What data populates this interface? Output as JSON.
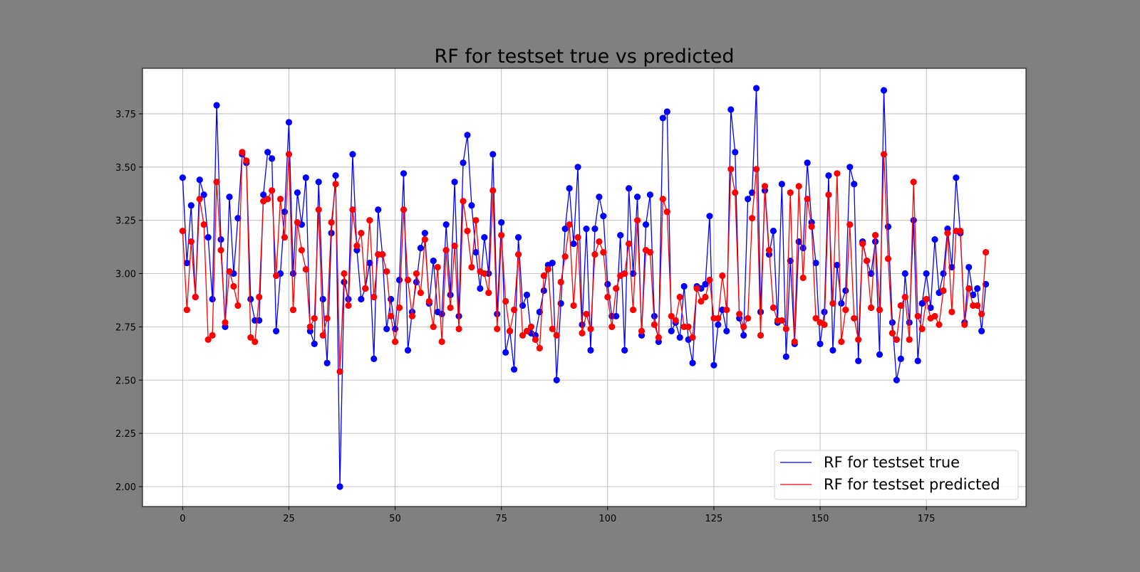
{
  "chart_data": {
    "type": "line",
    "title": "RF for testset true vs predicted",
    "xlabel": "",
    "ylabel": "",
    "xlim": [
      -9.45,
      198.45
    ],
    "ylim": [
      1.9065,
      3.9635
    ],
    "x_ticks": [
      0,
      25,
      50,
      75,
      100,
      125,
      150,
      175
    ],
    "y_ticks": [
      2.0,
      2.25,
      2.5,
      2.75,
      3.0,
      3.25,
      3.5,
      3.75
    ],
    "grid": true,
    "legend": "lower right",
    "series": [
      {
        "name": "RF for testset true",
        "color": "#0000ff",
        "marker": "circle",
        "values": [
          3.45,
          3.05,
          3.32,
          2.89,
          3.44,
          3.37,
          3.17,
          2.88,
          3.79,
          3.16,
          2.75,
          3.36,
          3.0,
          3.26,
          3.56,
          3.52,
          2.88,
          2.78,
          2.78,
          3.37,
          3.57,
          3.54,
          2.73,
          3.0,
          3.29,
          3.71,
          3.0,
          3.38,
          3.23,
          3.45,
          2.73,
          2.67,
          3.43,
          2.88,
          2.58,
          3.19,
          3.46,
          2.0,
          2.96,
          2.88,
          3.56,
          3.11,
          2.88,
          2.93,
          3.05,
          2.6,
          3.3,
          3.09,
          2.74,
          2.88,
          2.74,
          2.97,
          3.47,
          2.64,
          2.82,
          2.96,
          3.12,
          3.19,
          2.86,
          3.06,
          2.82,
          2.81,
          3.23,
          2.9,
          3.43,
          2.8,
          3.52,
          3.65,
          3.32,
          3.1,
          2.93,
          3.17,
          3.0,
          3.56,
          2.81,
          3.24,
          2.63,
          2.73,
          2.55,
          3.17,
          2.85,
          2.9,
          2.72,
          2.71,
          2.82,
          2.92,
          3.04,
          3.05,
          2.5,
          2.86,
          3.21,
          3.4,
          3.14,
          3.5,
          2.76,
          3.21,
          2.64,
          3.21,
          3.36,
          3.27,
          2.95,
          2.8,
          2.8,
          3.18,
          2.64,
          3.4,
          3.0,
          3.36,
          2.71,
          3.23,
          3.37,
          2.8,
          2.68,
          3.73,
          3.76,
          2.73,
          2.77,
          2.7,
          2.94,
          2.69,
          2.58,
          2.94,
          2.93,
          2.95,
          3.27,
          2.57,
          2.76,
          2.83,
          2.73,
          3.77,
          3.57,
          2.79,
          2.71,
          3.35,
          3.38,
          3.87,
          2.82,
          3.39,
          3.09,
          3.2,
          2.77,
          3.42,
          2.61,
          3.06,
          2.67,
          3.15,
          3.12,
          3.52,
          3.24,
          3.05,
          2.67,
          2.82,
          3.46,
          2.64,
          3.04,
          2.86,
          2.92,
          3.5,
          3.42,
          2.59,
          3.15,
          3.06,
          3.0,
          3.15,
          2.62,
          3.86,
          3.22,
          2.77,
          2.5,
          2.6,
          3.0,
          2.77,
          3.25,
          2.59,
          2.86,
          3.0,
          2.84,
          3.16,
          2.91,
          3.0,
          3.21,
          3.03,
          3.45,
          3.19,
          2.77,
          3.03,
          2.9,
          2.93,
          2.73,
          2.95
        ]
      },
      {
        "name": "RF for testset predicted",
        "color": "#ff0000",
        "marker": "circle",
        "values": [
          3.2,
          2.83,
          3.15,
          2.89,
          3.35,
          3.23,
          2.69,
          2.71,
          3.43,
          3.11,
          2.77,
          3.01,
          2.94,
          2.85,
          3.57,
          3.53,
          2.7,
          2.68,
          2.89,
          3.34,
          3.35,
          3.39,
          2.99,
          3.35,
          3.17,
          3.56,
          2.83,
          3.24,
          3.11,
          3.02,
          2.75,
          2.79,
          3.3,
          2.71,
          2.79,
          3.24,
          3.42,
          2.54,
          3.0,
          2.85,
          3.3,
          3.13,
          3.19,
          2.93,
          3.25,
          2.89,
          3.09,
          3.09,
          3.01,
          2.8,
          2.68,
          2.84,
          3.3,
          2.97,
          2.8,
          3.0,
          2.91,
          3.16,
          2.87,
          2.75,
          3.03,
          2.68,
          3.11,
          2.84,
          3.13,
          2.74,
          3.34,
          3.2,
          3.03,
          3.25,
          3.01,
          3.0,
          2.91,
          3.39,
          2.74,
          3.18,
          2.87,
          2.73,
          2.83,
          3.09,
          2.71,
          2.73,
          2.75,
          2.69,
          2.65,
          2.99,
          3.02,
          2.74,
          2.71,
          2.96,
          3.08,
          3.23,
          2.85,
          3.17,
          2.72,
          2.81,
          2.74,
          3.09,
          3.15,
          3.1,
          2.89,
          2.75,
          2.93,
          2.99,
          3.0,
          3.14,
          2.83,
          3.25,
          2.73,
          3.11,
          3.1,
          2.76,
          2.7,
          3.35,
          3.29,
          2.8,
          2.78,
          2.89,
          2.75,
          2.75,
          2.7,
          2.93,
          2.87,
          2.89,
          2.97,
          2.79,
          2.79,
          2.99,
          2.83,
          3.49,
          3.38,
          2.81,
          2.75,
          2.79,
          3.26,
          3.49,
          2.71,
          3.41,
          3.11,
          2.84,
          2.78,
          2.78,
          2.74,
          3.38,
          2.68,
          3.41,
          2.98,
          3.35,
          3.22,
          2.79,
          2.77,
          2.76,
          3.37,
          2.86,
          3.47,
          2.68,
          2.83,
          3.23,
          2.79,
          2.69,
          3.14,
          3.06,
          2.84,
          3.18,
          2.83,
          3.56,
          3.07,
          2.72,
          2.69,
          2.85,
          2.89,
          2.69,
          3.43,
          2.8,
          2.74,
          2.88,
          2.79,
          2.8,
          2.76,
          2.92,
          3.19,
          2.82,
          3.2,
          3.2,
          2.76,
          2.93,
          2.85,
          2.85,
          2.81,
          3.1
        ]
      }
    ]
  }
}
